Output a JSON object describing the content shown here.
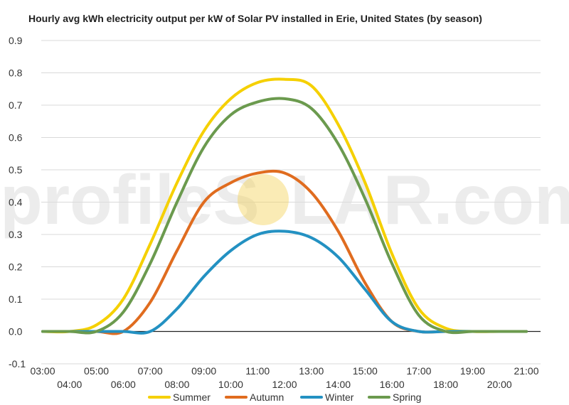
{
  "chart_data": {
    "type": "line",
    "title": "Hourly avg kWh electricity output per kW of Solar PV installed in Erie, United States (by season)",
    "xlabel": "",
    "ylabel": "",
    "x": [
      "03:00",
      "04:00",
      "05:00",
      "06:00",
      "07:00",
      "08:00",
      "09:00",
      "10:00",
      "11:00",
      "12:00",
      "13:00",
      "14:00",
      "15:00",
      "16:00",
      "17:00",
      "18:00",
      "19:00",
      "20:00",
      "21:00"
    ],
    "x_ticks": [
      "03:00",
      "04:00",
      "05:00",
      "06:00",
      "07:00",
      "08:00",
      "09:00",
      "10:00",
      "11:00",
      "12:00",
      "13:00",
      "14:00",
      "15:00",
      "16:00",
      "17:00",
      "18:00",
      "19:00",
      "20:00",
      "21:00"
    ],
    "ylim": [
      -0.1,
      0.9
    ],
    "y_ticks": [
      "-0.1",
      "0.0",
      "0.1",
      "0.2",
      "0.3",
      "0.4",
      "0.5",
      "0.6",
      "0.7",
      "0.8",
      "0.9"
    ],
    "grid": true,
    "legend_position": "bottom",
    "series": [
      {
        "name": "Summer",
        "color": "#f5d000",
        "values": [
          0.0,
          0.0,
          0.02,
          0.1,
          0.27,
          0.46,
          0.62,
          0.72,
          0.77,
          0.78,
          0.76,
          0.64,
          0.46,
          0.24,
          0.07,
          0.01,
          0.0,
          0.0,
          0.0
        ]
      },
      {
        "name": "Autumn",
        "color": "#e06c1f",
        "values": [
          0.0,
          0.0,
          0.0,
          0.0,
          0.09,
          0.25,
          0.4,
          0.46,
          0.49,
          0.49,
          0.43,
          0.31,
          0.15,
          0.03,
          0.0,
          0.0,
          0.0,
          0.0,
          0.0
        ]
      },
      {
        "name": "Winter",
        "color": "#2391c2",
        "values": [
          0.0,
          0.0,
          0.0,
          0.0,
          0.0,
          0.07,
          0.17,
          0.25,
          0.3,
          0.31,
          0.29,
          0.23,
          0.13,
          0.03,
          0.0,
          0.0,
          0.0,
          0.0,
          0.0
        ]
      },
      {
        "name": "Spring",
        "color": "#6b9a4e",
        "values": [
          0.0,
          0.0,
          0.0,
          0.06,
          0.21,
          0.4,
          0.57,
          0.67,
          0.71,
          0.72,
          0.69,
          0.58,
          0.41,
          0.21,
          0.05,
          0.0,
          0.0,
          0.0,
          0.0
        ]
      }
    ],
    "watermark": {
      "text_left": "profileS",
      "text_right": "LAR.com",
      "sun_color": "#f3d25a"
    }
  }
}
